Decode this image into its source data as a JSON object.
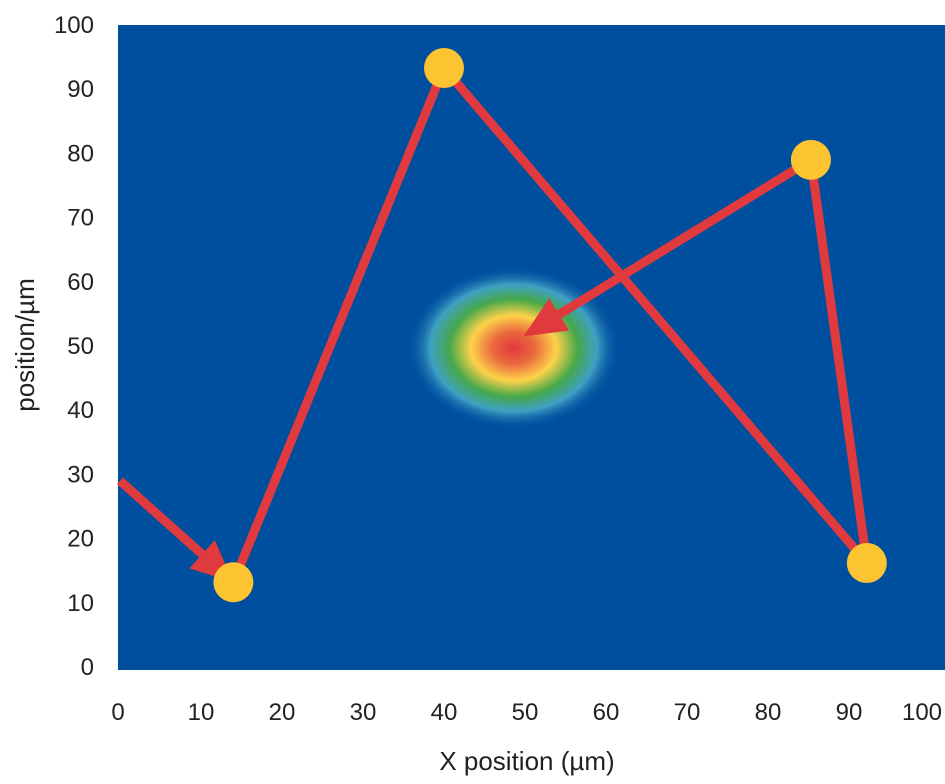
{
  "chart_data": {
    "type": "scatter",
    "title": "",
    "xlabel": "X position (µm)",
    "ylabel": "position/µm",
    "xlim": [
      0,
      100
    ],
    "ylim": [
      0,
      100
    ],
    "x_ticks": [
      "0",
      "10",
      "20",
      "30",
      "40",
      "50",
      "60",
      "70",
      "80",
      "90",
      "100"
    ],
    "y_ticks": [
      "0",
      "10",
      "20",
      "30",
      "40",
      "50",
      "60",
      "70",
      "80",
      "90",
      "100"
    ],
    "grid": false,
    "points": [
      {
        "x": 14,
        "y": 13.2
      },
      {
        "x": 40,
        "y": 93.3
      },
      {
        "x": 85.3,
        "y": 79
      },
      {
        "x": 92.2,
        "y": 16.2
      }
    ],
    "path": [
      {
        "x": 0,
        "y": 29,
        "arrow": false
      },
      {
        "x": 14,
        "y": 13.2,
        "arrow": true
      },
      {
        "x": 40,
        "y": 93.3,
        "arrow": false
      },
      {
        "x": 92.2,
        "y": 16.2,
        "arrow": false
      },
      {
        "x": 85.3,
        "y": 79,
        "arrow": false
      },
      {
        "x": 49.8,
        "y": 51.5,
        "arrow": true
      }
    ],
    "hotspot": {
      "x": 48.6,
      "y": 49.7,
      "sx": 13.2,
      "sy": 12.7
    },
    "colors": {
      "background": "#004f9e",
      "path": "#e0393e",
      "points": "#fdc431"
    }
  }
}
